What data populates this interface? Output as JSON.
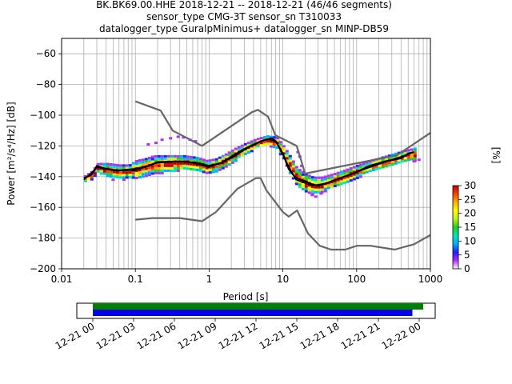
{
  "title_lines": [
    "BK.BK69.00.HHE   2018-12-21 -- 2018-12-21  (46/46 segments)",
    "sensor_type CMG-3T sensor_sn T310033",
    "datalogger_type GuralpMinimus+ datalogger_sn MINP-DB59"
  ],
  "chart_data": [
    {
      "type": "heatmap",
      "xlabel": "Period [s]",
      "ylabel": "Power [m²/s⁴/Hz] [dB]",
      "x_scale": "log",
      "xlim": [
        0.01,
        1000
      ],
      "ylim": [
        -200,
        -50
      ],
      "x_ticks": [
        0.01,
        0.1,
        1,
        10,
        100,
        1000
      ],
      "x_tick_labels": [
        "0.01",
        "0.1",
        "1",
        "10",
        "100",
        "1000"
      ],
      "y_ticks": [
        -200,
        -180,
        -160,
        -140,
        -120,
        -100,
        -80,
        -60
      ],
      "grid": true,
      "colorbar": {
        "label": "[%]",
        "range": [
          0,
          30
        ],
        "ticks": [
          0,
          5,
          10,
          15,
          20,
          25,
          30
        ],
        "colormap": [
          "#ffffff",
          "#b030ff",
          "#2020ff",
          "#00b0ff",
          "#00e5c0",
          "#20d020",
          "#c0f020",
          "#ffff00",
          "#ffb000",
          "#ff4000",
          "#c00000"
        ]
      },
      "series": [
        {
          "name": "",
          "role": "new-high-noise-model",
          "color": "#666666",
          "points": [
            [
              0.1,
              -91
            ],
            [
              0.22,
              -97
            ],
            [
              0.32,
              -110
            ],
            [
              0.8,
              -120
            ],
            [
              3.8,
              -98
            ],
            [
              4.6,
              -96.5
            ],
            [
              6.3,
              -101
            ],
            [
              7.9,
              -113
            ],
            [
              15.4,
              -120
            ],
            [
              20,
              -138
            ],
            [
              354,
              -126
            ],
            [
              1000,
              -111.5
            ]
          ]
        },
        {
          "name": "",
          "role": "new-low-noise-model",
          "color": "#666666",
          "points": [
            [
              0.1,
              -168
            ],
            [
              0.17,
              -167
            ],
            [
              0.4,
              -167
            ],
            [
              0.8,
              -169
            ],
            [
              1.24,
              -163
            ],
            [
              2.4,
              -148
            ],
            [
              4.3,
              -141
            ],
            [
              5,
              -141
            ],
            [
              6,
              -149
            ],
            [
              10,
              -163
            ],
            [
              12,
              -166
            ],
            [
              15.6,
              -162
            ],
            [
              21.9,
              -177
            ],
            [
              31.6,
              -185
            ],
            [
              45,
              -187.5
            ],
            [
              70,
              -187.5
            ],
            [
              101,
              -185
            ],
            [
              154,
              -185
            ],
            [
              328,
              -187.5
            ],
            [
              600,
              -184
            ],
            [
              1000,
              -178
            ]
          ]
        },
        {
          "name": "",
          "role": "mean",
          "color": "#000000",
          "points": [
            [
              0.02,
              -141
            ],
            [
              0.025,
              -139
            ],
            [
              0.028,
              -136
            ],
            [
              0.03,
              -133
            ],
            [
              0.04,
              -135
            ],
            [
              0.06,
              -136
            ],
            [
              0.1,
              -135
            ],
            [
              0.15,
              -133
            ],
            [
              0.2,
              -130.5
            ],
            [
              0.4,
              -130
            ],
            [
              0.7,
              -131
            ],
            [
              1,
              -133
            ],
            [
              1.5,
              -131
            ],
            [
              2,
              -127
            ],
            [
              3,
              -122
            ],
            [
              5,
              -117
            ],
            [
              7,
              -115
            ],
            [
              8,
              -117
            ],
            [
              10,
              -125
            ],
            [
              12,
              -135
            ],
            [
              15,
              -141
            ],
            [
              20,
              -143
            ],
            [
              25,
              -145
            ],
            [
              30,
              -146
            ],
            [
              40,
              -144
            ],
            [
              60,
              -141
            ],
            [
              100,
              -137
            ],
            [
              150,
              -133
            ],
            [
              250,
              -130
            ],
            [
              400,
              -128
            ],
            [
              500,
              -125
            ],
            [
              600,
              -124
            ]
          ]
        },
        {
          "name": "",
          "role": "mode",
          "color": "#000000",
          "points": [
            [
              0.02,
              -142
            ],
            [
              0.03,
              -134
            ],
            [
              0.05,
              -136
            ],
            [
              0.1,
              -136
            ],
            [
              0.2,
              -131
            ],
            [
              0.5,
              -130
            ],
            [
              1,
              -134
            ],
            [
              2,
              -128
            ],
            [
              4,
              -119
            ],
            [
              6,
              -115.5
            ],
            [
              8,
              -117
            ],
            [
              10,
              -126
            ],
            [
              15,
              -142
            ],
            [
              25,
              -146
            ],
            [
              40,
              -144
            ],
            [
              100,
              -137
            ],
            [
              300,
              -129
            ],
            [
              600,
              -124
            ]
          ]
        }
      ],
      "heat_band": [
        [
          0.02,
          -143,
          -139,
          2
        ],
        [
          0.025,
          -141,
          -136,
          3
        ],
        [
          0.03,
          -137,
          -131,
          4
        ],
        [
          0.04,
          -139,
          -131,
          5
        ],
        [
          0.06,
          -141,
          -132,
          6
        ],
        [
          0.08,
          -140,
          -132,
          6
        ],
        [
          0.1,
          -141,
          -129,
          7
        ],
        [
          0.13,
          -139,
          -128,
          7
        ],
        [
          0.17,
          -138,
          -126,
          7
        ],
        [
          0.22,
          -137,
          -126,
          7
        ],
        [
          0.3,
          -136,
          -126,
          6
        ],
        [
          0.45,
          -135,
          -126,
          6
        ],
        [
          0.65,
          -136,
          -127,
          6
        ],
        [
          0.9,
          -137,
          -129,
          5
        ],
        [
          1.2,
          -136,
          -128,
          5
        ],
        [
          1.6,
          -133,
          -125,
          5
        ],
        [
          2.2,
          -129,
          -121,
          5
        ],
        [
          3,
          -125,
          -118,
          5
        ],
        [
          4.2,
          -121,
          -115,
          5
        ],
        [
          6,
          -119,
          -113,
          5
        ],
        [
          8,
          -121,
          -114,
          5
        ],
        [
          10,
          -129,
          -120,
          6
        ],
        [
          12,
          -138,
          -126,
          7
        ],
        [
          15,
          -146,
          -134,
          8
        ],
        [
          20,
          -150,
          -138,
          8
        ],
        [
          25,
          -151,
          -140,
          8
        ],
        [
          32,
          -150,
          -140,
          7
        ],
        [
          45,
          -147,
          -138,
          6
        ],
        [
          70,
          -143,
          -135,
          5
        ],
        [
          100,
          -140,
          -132,
          5
        ],
        [
          150,
          -136,
          -129,
          4
        ],
        [
          250,
          -133,
          -126,
          4
        ],
        [
          400,
          -130,
          -123,
          4
        ],
        [
          600,
          -129,
          -121,
          4
        ]
      ],
      "outliers": [
        [
          0.15,
          -119
        ],
        [
          0.19,
          -118
        ],
        [
          0.23,
          -116
        ],
        [
          0.3,
          -115
        ],
        [
          0.38,
          -114
        ],
        [
          0.45,
          -114.5
        ],
        [
          0.55,
          -116
        ],
        [
          0.65,
          -117
        ],
        [
          16,
          -124
        ],
        [
          17,
          -127
        ],
        [
          18,
          -133
        ],
        [
          19,
          -137
        ],
        [
          25,
          -152
        ],
        [
          28,
          -153
        ],
        [
          33,
          -151
        ],
        [
          600,
          -130
        ],
        [
          700,
          -129
        ],
        [
          0.05,
          -142
        ],
        [
          0.07,
          -142
        ]
      ]
    },
    {
      "type": "timeline",
      "ticks": [
        "12-21 00",
        "12-21 03",
        "12-21 06",
        "12-21 09",
        "12-21 12",
        "12-21 15",
        "12-21 18",
        "12-21 21",
        "12-22 00"
      ],
      "bars": [
        {
          "role": "data-availability",
          "color": "#008000",
          "start_hour": 0,
          "end_hour": 24.3
        },
        {
          "role": "psd-segments",
          "color": "#0000ee",
          "start_hour": 0,
          "end_hour": 23.5
        }
      ]
    }
  ]
}
